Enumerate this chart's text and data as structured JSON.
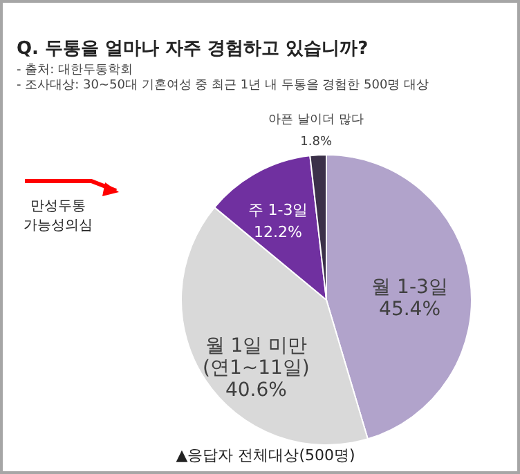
{
  "chart_data": {
    "type": "pie",
    "title": "Q. 두통을 얼마나 자주 경험하고 있습니까?",
    "subtitle": "- 출처: 대한두통학회\n- 조사대상: 30~50대 기혼여성 중 최근 1년 내 두통을 경험한 500명 대상",
    "categories": [
      "월 1-3일",
      "월 1일 미만\n(연1~11일)",
      "주 1-3일",
      "아픈 날이더 많다"
    ],
    "values": [
      45.4,
      40.6,
      12.2,
      1.8
    ],
    "value_labels": [
      "45.4%",
      "40.6%",
      "12.2%",
      "1.8%"
    ],
    "colors": [
      "#b1a3cb",
      "#d9d9d9",
      "#7030a0",
      "#3b3049"
    ],
    "annotations": [
      "만성두통 가능성의심",
      "▲응답자 전체대상(500명)"
    ]
  }
}
